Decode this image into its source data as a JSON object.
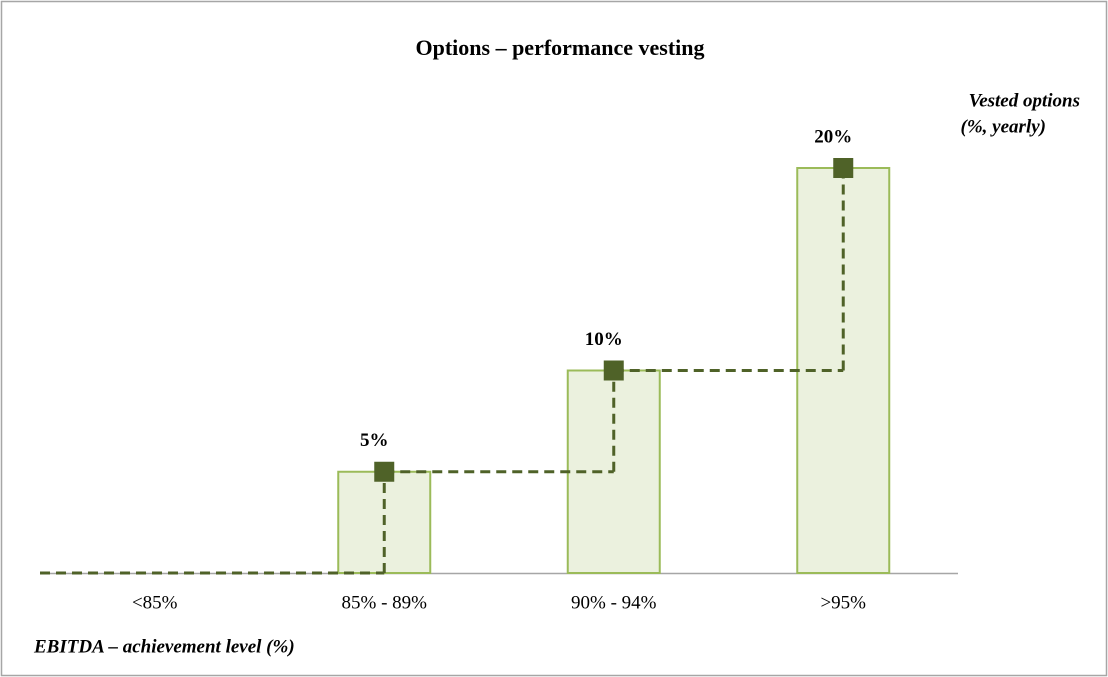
{
  "chart_data": {
    "type": "bar",
    "title": "Options – performance vesting",
    "y_label": [
      "Vested options",
      "(%, yearly)"
    ],
    "x_label": "EBITDA – achievement level (%)",
    "categories": [
      "<85%",
      "85% - 89%",
      "90% - 94%",
      ">95%"
    ],
    "values": [
      0,
      5,
      10,
      20
    ],
    "value_labels": [
      null,
      "5%",
      "10%",
      "20%"
    ],
    "color": "#ebf1de",
    "edge_color": "#9bbb59",
    "line_color": "#4f6228",
    "ylim": [
      0,
      20
    ]
  }
}
